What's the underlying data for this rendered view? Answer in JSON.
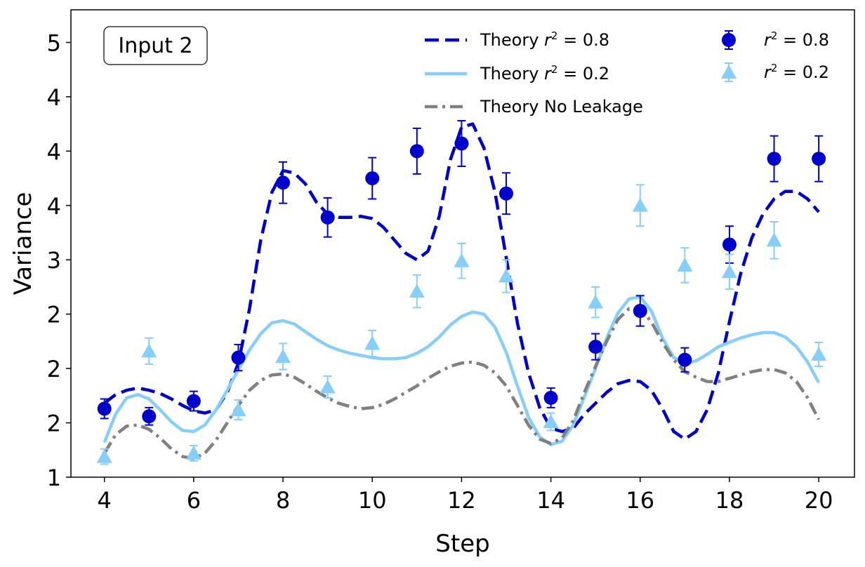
{
  "chart_data": {
    "type": "line",
    "title": "",
    "xlabel": "Step",
    "ylabel": "Variance",
    "annotation": "Input 2",
    "xlim": [
      3.25,
      20.8
    ],
    "ylim": [
      1.0,
      5.3
    ],
    "xticks": [
      4,
      6,
      8,
      10,
      12,
      14,
      16,
      18,
      20
    ],
    "yticks": [
      {
        "value": 1.0,
        "label": "1"
      },
      {
        "value": 1.5,
        "label": "2"
      },
      {
        "value": 2.0,
        "label": "2"
      },
      {
        "value": 2.5,
        "label": "2"
      },
      {
        "value": 3.0,
        "label": "3"
      },
      {
        "value": 3.5,
        "label": "4"
      },
      {
        "value": 4.0,
        "label": "4"
      },
      {
        "value": 4.5,
        "label": "4"
      },
      {
        "value": 5.0,
        "label": "5"
      }
    ],
    "legend_position": "top-right",
    "lines": [
      {
        "name": "Theory r^2 = 0.8",
        "legend_prefix": "Theory ",
        "legend_math": "r",
        "legend_rest": " = 0.8",
        "color": "#0000cc",
        "style": "dashed",
        "x": [
          4,
          4.25,
          4.5,
          4.75,
          5,
          5.25,
          5.5,
          5.75,
          6,
          6.25,
          6.5,
          6.75,
          7,
          7.25,
          7.5,
          7.75,
          8,
          8.25,
          8.5,
          8.75,
          9,
          9.25,
          9.5,
          9.75,
          10,
          10.25,
          10.5,
          10.75,
          11,
          11.25,
          11.5,
          11.75,
          12,
          12.25,
          12.5,
          12.75,
          13,
          13.25,
          13.5,
          13.75,
          14,
          14.25,
          14.5,
          14.75,
          15,
          15.25,
          15.5,
          15.75,
          16,
          16.25,
          16.5,
          16.75,
          17,
          17.25,
          17.5,
          17.75,
          18,
          18.25,
          18.5,
          18.75,
          19,
          19.25,
          19.5,
          19.75,
          20
        ],
        "y": [
          1.68,
          1.76,
          1.8,
          1.82,
          1.8,
          1.77,
          1.72,
          1.66,
          1.61,
          1.59,
          1.62,
          1.78,
          2.05,
          2.55,
          3.18,
          3.62,
          3.82,
          3.8,
          3.7,
          3.53,
          3.42,
          3.39,
          3.39,
          3.4,
          3.38,
          3.3,
          3.18,
          3.06,
          3.0,
          3.08,
          3.4,
          3.92,
          4.22,
          4.25,
          4.03,
          3.62,
          3.02,
          2.42,
          1.96,
          1.64,
          1.45,
          1.42,
          1.45,
          1.58,
          1.68,
          1.78,
          1.86,
          1.89,
          1.88,
          1.8,
          1.63,
          1.42,
          1.35,
          1.42,
          1.62,
          1.96,
          2.43,
          2.87,
          3.2,
          3.42,
          3.56,
          3.63,
          3.63,
          3.56,
          3.44
        ]
      },
      {
        "name": "Theory r^2 = 0.2",
        "legend_prefix": "Theory ",
        "legend_math": "r",
        "legend_rest": " = 0.2",
        "color": "#87cefa",
        "style": "solid",
        "x": [
          4,
          4.25,
          4.5,
          4.75,
          5,
          5.25,
          5.5,
          5.75,
          6,
          6.25,
          6.5,
          6.75,
          7,
          7.25,
          7.5,
          7.75,
          8,
          8.25,
          8.5,
          8.75,
          9,
          9.25,
          9.5,
          9.75,
          10,
          10.25,
          10.5,
          10.75,
          11,
          11.25,
          11.5,
          11.75,
          12,
          12.25,
          12.5,
          12.75,
          13,
          13.25,
          13.5,
          13.75,
          14,
          14.25,
          14.5,
          14.75,
          15,
          15.25,
          15.5,
          15.75,
          16,
          16.25,
          16.5,
          16.75,
          17,
          17.25,
          17.5,
          17.75,
          18,
          18.25,
          18.5,
          18.75,
          19,
          19.25,
          19.5,
          19.75,
          20
        ],
        "y": [
          1.32,
          1.58,
          1.73,
          1.76,
          1.72,
          1.62,
          1.51,
          1.43,
          1.42,
          1.48,
          1.62,
          1.8,
          1.99,
          2.17,
          2.32,
          2.42,
          2.44,
          2.41,
          2.34,
          2.27,
          2.21,
          2.17,
          2.14,
          2.12,
          2.1,
          2.09,
          2.09,
          2.1,
          2.14,
          2.2,
          2.29,
          2.4,
          2.48,
          2.52,
          2.5,
          2.38,
          2.15,
          1.84,
          1.55,
          1.37,
          1.3,
          1.33,
          1.48,
          1.74,
          2.0,
          2.28,
          2.51,
          2.64,
          2.66,
          2.53,
          2.28,
          2.1,
          2.05,
          2.07,
          2.13,
          2.2,
          2.24,
          2.28,
          2.31,
          2.33,
          2.33,
          2.29,
          2.2,
          2.06,
          1.87
        ]
      },
      {
        "name": "Theory No Leakage",
        "legend_prefix": "Theory No Leakage",
        "legend_math": "",
        "legend_rest": "",
        "color": "#808080",
        "style": "dashdot",
        "x": [
          4,
          4.25,
          4.5,
          4.75,
          5,
          5.25,
          5.5,
          5.75,
          6,
          6.25,
          6.5,
          6.75,
          7,
          7.25,
          7.5,
          7.75,
          8,
          8.25,
          8.5,
          8.75,
          9,
          9.25,
          9.5,
          9.75,
          10,
          10.25,
          10.5,
          10.75,
          11,
          11.25,
          11.5,
          11.75,
          12,
          12.25,
          12.5,
          12.75,
          13,
          13.25,
          13.5,
          13.75,
          14,
          14.25,
          14.5,
          14.75,
          15,
          15.25,
          15.5,
          15.75,
          16,
          16.25,
          16.5,
          16.75,
          17,
          17.25,
          17.5,
          17.75,
          18,
          18.25,
          18.5,
          18.75,
          19,
          19.25,
          19.5,
          19.75,
          20
        ],
        "y": [
          1.22,
          1.39,
          1.47,
          1.48,
          1.44,
          1.36,
          1.26,
          1.19,
          1.17,
          1.22,
          1.34,
          1.5,
          1.66,
          1.8,
          1.89,
          1.94,
          1.95,
          1.92,
          1.86,
          1.79,
          1.73,
          1.68,
          1.65,
          1.63,
          1.64,
          1.67,
          1.72,
          1.78,
          1.84,
          1.91,
          1.97,
          2.02,
          2.05,
          2.06,
          2.03,
          1.96,
          1.84,
          1.66,
          1.48,
          1.35,
          1.31,
          1.36,
          1.52,
          1.78,
          2.02,
          2.25,
          2.45,
          2.55,
          2.55,
          2.43,
          2.24,
          2.08,
          1.97,
          1.92,
          1.88,
          1.88,
          1.91,
          1.94,
          1.97,
          1.99,
          1.99,
          1.96,
          1.88,
          1.73,
          1.53
        ]
      }
    ],
    "scatter": [
      {
        "name": "r^2 = 0.8",
        "legend_math": "r",
        "legend_rest": " = 0.8",
        "color": "#0000cc",
        "marker": "circle",
        "x": [
          4,
          5,
          6,
          7,
          8,
          9,
          10,
          11,
          12,
          13,
          14,
          15,
          16,
          17,
          18,
          19,
          20
        ],
        "y": [
          1.63,
          1.56,
          1.7,
          2.1,
          3.71,
          3.39,
          3.75,
          4.0,
          4.07,
          3.61,
          1.73,
          2.2,
          2.53,
          2.08,
          3.14,
          3.93,
          3.93
        ],
        "err": [
          0.09,
          0.08,
          0.09,
          0.12,
          0.19,
          0.18,
          0.19,
          0.21,
          0.21,
          0.19,
          0.09,
          0.12,
          0.14,
          0.11,
          0.17,
          0.21,
          0.21
        ]
      },
      {
        "name": "r^2 = 0.2",
        "legend_math": "r",
        "legend_rest": " = 0.2",
        "color": "#87cefa",
        "marker": "triangle",
        "x": [
          4,
          5,
          6,
          7,
          8,
          9,
          10,
          11,
          12,
          13,
          14,
          15,
          16,
          17,
          18,
          19,
          20
        ],
        "y": [
          1.19,
          2.16,
          1.22,
          1.62,
          2.11,
          1.83,
          2.23,
          2.71,
          2.99,
          2.85,
          1.51,
          2.61,
          3.5,
          2.95,
          2.89,
          3.18,
          2.13
        ],
        "err": [
          0.07,
          0.12,
          0.07,
          0.09,
          0.12,
          0.1,
          0.12,
          0.15,
          0.16,
          0.15,
          0.08,
          0.14,
          0.19,
          0.16,
          0.16,
          0.17,
          0.11
        ]
      }
    ]
  }
}
